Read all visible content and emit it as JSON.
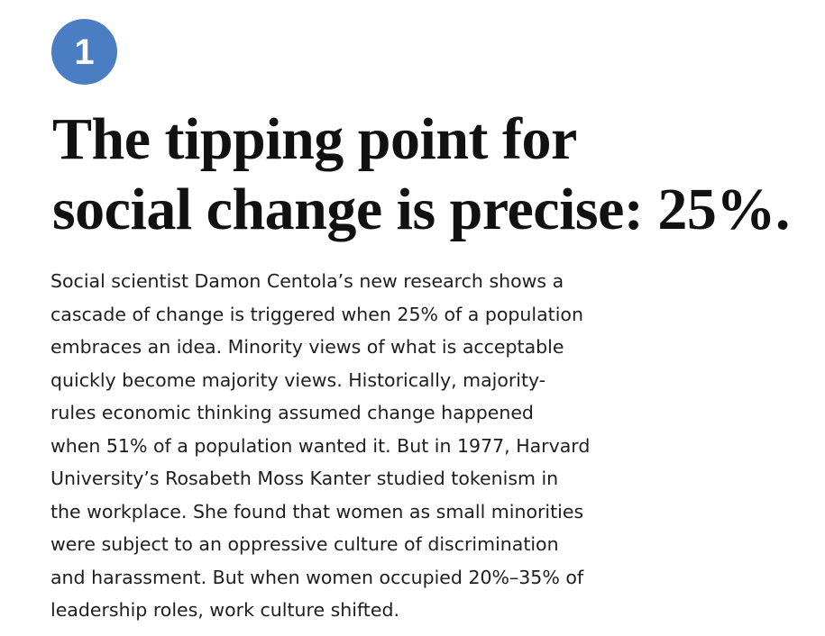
{
  "badge": {
    "number": "1",
    "color": "#4a7dc2"
  },
  "headline": {
    "line1": "The tipping point for",
    "line2": "social change is precise: 25%."
  },
  "body": {
    "lines": [
      "Social scientist Damon Centola’s new research shows a",
      "cascade of change is triggered when 25% of a population",
      "embraces an idea. Minority views of what is acceptable",
      "quickly become majority views. Historically, majority-",
      "rules economic thinking assumed change happened",
      "when 51% of a population wanted it. But in 1977, Harvard",
      "University’s Rosabeth Moss Kanter studied tokenism in",
      "the workplace. She found that women as small minorities",
      "were subject to an oppressive culture of discrimination",
      "and harassment. But when women occupied 20%–35% of",
      "leadership roles, work culture shifted."
    ]
  }
}
